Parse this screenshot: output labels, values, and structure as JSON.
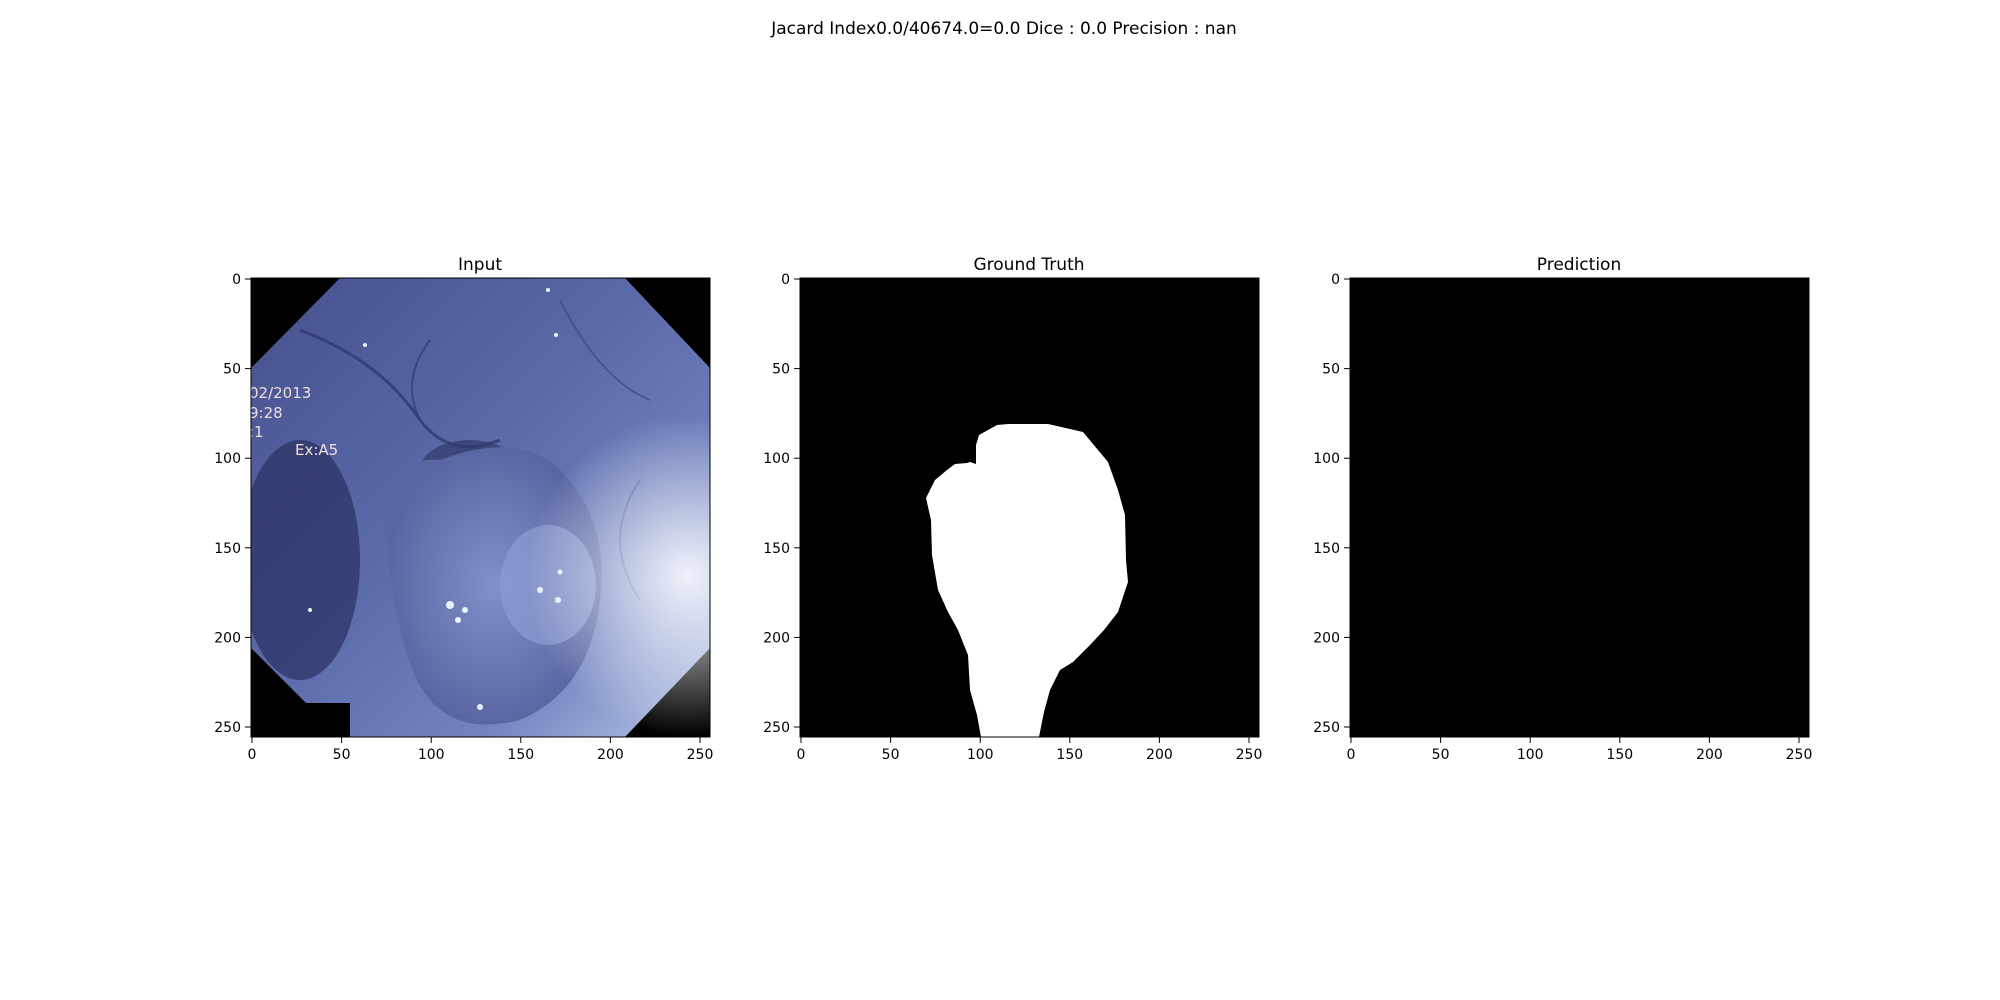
{
  "figure": {
    "suptitle": "Jacard Index0.0/40674.0=0.0 Dice : 0.0 Precision : nan",
    "colors": {
      "background": "#ffffff",
      "mask_background": "#000000",
      "mask_foreground": "#ffffff",
      "tissue_dark": "#3c4680",
      "tissue_mid": "#5a68a8",
      "tissue_light": "#c9d4ec",
      "overlay_text": "#f2dede"
    }
  },
  "panels": [
    {
      "title": "Input",
      "image": "endoscopy-photo",
      "overlay_text": [
        "02/2013",
        "9:28",
        ":1",
        "Ex:A5"
      ],
      "x_ticks": [
        "0",
        "50",
        "100",
        "150",
        "200",
        "250"
      ],
      "y_ticks": [
        "0",
        "50",
        "100",
        "150",
        "200",
        "250"
      ]
    },
    {
      "title": "Ground Truth",
      "image": "binary-mask",
      "x_ticks": [
        "0",
        "50",
        "100",
        "150",
        "200",
        "250"
      ],
      "y_ticks": [
        "0",
        "50",
        "100",
        "150",
        "200",
        "250"
      ]
    },
    {
      "title": "Prediction",
      "image": "empty-mask",
      "x_ticks": [
        "0",
        "50",
        "100",
        "150",
        "200",
        "250"
      ],
      "y_ticks": [
        "0",
        "50",
        "100",
        "150",
        "200",
        "250"
      ]
    }
  ]
}
